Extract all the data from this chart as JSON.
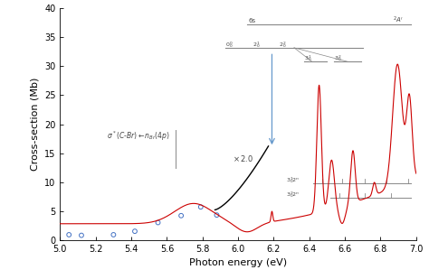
{
  "xlabel": "Photon energy (eV)",
  "ylabel": "Cross-section (Mb)",
  "xlim": [
    5.0,
    7.0
  ],
  "ylim": [
    0,
    40
  ],
  "yticks": [
    0,
    5,
    10,
    15,
    20,
    25,
    30,
    35,
    40
  ],
  "xticks": [
    5.0,
    5.2,
    5.4,
    5.6,
    5.8,
    6.0,
    6.2,
    6.4,
    6.6,
    6.8,
    7.0
  ],
  "scatter_x": [
    5.05,
    5.12,
    5.3,
    5.42,
    5.55,
    5.68,
    5.79,
    5.88
  ],
  "scatter_y": [
    0.9,
    0.8,
    0.9,
    1.5,
    3.0,
    4.2,
    5.7,
    4.3
  ],
  "scatter_color": "#4472C4",
  "line_color": "#CC0000",
  "arrow_color": "#6699CC",
  "diagram_color": "#888888",
  "text_color": "#444444",
  "bg_color": "#ffffff"
}
